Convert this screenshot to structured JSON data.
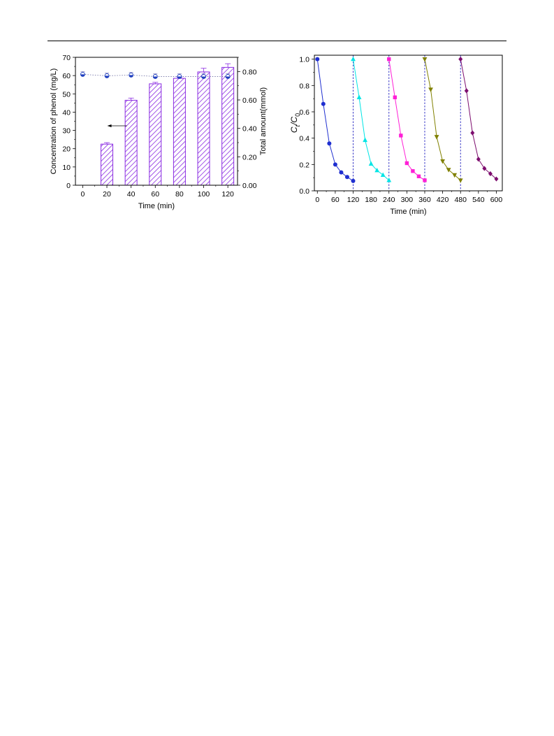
{
  "page": {
    "header_rule": true
  },
  "chart_data": [
    {
      "type": "bar",
      "x": [
        0,
        20,
        40,
        60,
        80,
        100,
        120
      ],
      "bar_values": [
        null,
        22.5,
        46.5,
        55.5,
        58.5,
        62,
        64.5
      ],
      "bar_errors": [
        null,
        0.8,
        1.2,
        0.8,
        0.8,
        2.0,
        2.0
      ],
      "series": [
        {
          "axis": "right",
          "kind": "scatter",
          "values": [
            0.78,
            0.77,
            0.775,
            0.765,
            0.765,
            0.765,
            0.765
          ],
          "errors": [
            0.02,
            0.02,
            0.02,
            0.02,
            0.02,
            0.02,
            0.02
          ],
          "color": "#1f3fbf"
        }
      ],
      "xlabel": "Time (min)",
      "ylabel": "Concentration of phenol (mg/L)",
      "y2label": "Total amount(mmol)",
      "xticks": [
        "0",
        "20",
        "40",
        "60",
        "80",
        "100",
        "120"
      ],
      "yticks": [
        "0",
        "10",
        "20",
        "30",
        "40",
        "50",
        "60",
        "70"
      ],
      "y2ticks": [
        "0.00",
        "0.20",
        "0.40",
        "0.60",
        "0.80"
      ],
      "ylim": [
        0,
        70
      ],
      "y2lim": [
        0,
        0.9
      ],
      "xlim": [
        -6,
        128
      ],
      "bar_color": "#8a2be2",
      "annotation": {
        "type": "arrow",
        "direction": "left",
        "points_to_axis": "left",
        "at_x": 33,
        "at_y": 32.5
      }
    },
    {
      "type": "line",
      "xlabel": "Time (min)",
      "ylabel_main": "C",
      "ylabel_sub1": "t",
      "ylabel_sep": "/C",
      "ylabel_sub2": "0",
      "xticks": [
        "0",
        "60",
        "120",
        "180",
        "240",
        "300",
        "360",
        "420",
        "480",
        "540",
        "600"
      ],
      "yticks": [
        "0.0",
        "0.2",
        "0.4",
        "0.6",
        "0.8",
        "1.0"
      ],
      "xlim": [
        -10,
        620
      ],
      "ylim": [
        0,
        1.03
      ],
      "cycle_lines": [
        120,
        240,
        360,
        480
      ],
      "series": [
        {
          "marker": "circle",
          "color": "#1f2fd0",
          "x": [
            0,
            20,
            40,
            60,
            80,
            100,
            120
          ],
          "y": [
            1.0,
            0.66,
            0.36,
            0.2,
            0.14,
            0.105,
            0.075
          ]
        },
        {
          "marker": "triangle-up",
          "color": "#00e5e5",
          "x": [
            120,
            140,
            160,
            180,
            200,
            220,
            240
          ],
          "y": [
            1.0,
            0.71,
            0.385,
            0.205,
            0.155,
            0.12,
            0.08
          ]
        },
        {
          "marker": "square",
          "color": "#ff1fd6",
          "x": [
            240,
            260,
            280,
            300,
            320,
            340,
            360
          ],
          "y": [
            1.0,
            0.71,
            0.42,
            0.21,
            0.15,
            0.11,
            0.08
          ]
        },
        {
          "marker": "triangle-down",
          "color": "#808000",
          "x": [
            360,
            380,
            400,
            420,
            440,
            460,
            480
          ],
          "y": [
            1.0,
            0.77,
            0.41,
            0.225,
            0.16,
            0.12,
            0.08
          ]
        },
        {
          "marker": "diamond",
          "color": "#7d0d6e",
          "x": [
            480,
            500,
            520,
            540,
            560,
            580,
            600
          ],
          "y": [
            1.0,
            0.76,
            0.44,
            0.24,
            0.17,
            0.13,
            0.09
          ]
        }
      ]
    }
  ]
}
